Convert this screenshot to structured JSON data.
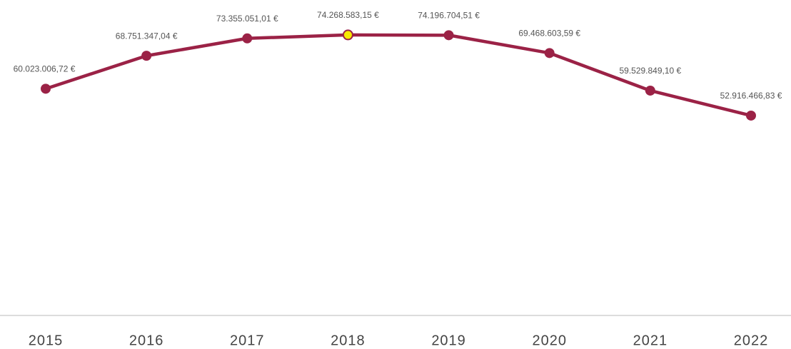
{
  "chart_data": {
    "type": "line",
    "categories": [
      "2015",
      "2016",
      "2017",
      "2018",
      "2019",
      "2020",
      "2021",
      "2022"
    ],
    "values": [
      60023006.72,
      68751347.04,
      73355051.01,
      74268583.15,
      74196704.51,
      69468603.59,
      59529849.1,
      52916466.83
    ],
    "value_labels": [
      "60.023.006,72 €",
      "68.751.347,04 €",
      "73.355.051,01 €",
      "74.268.583,15 €",
      "74.196.704,51 €",
      "69.468.603,59 €",
      "59.529.849,10 €",
      "52.916.466,83 €"
    ],
    "color": "#9b2246",
    "highlight": {
      "index": 3,
      "color": "#f7ea00"
    },
    "ylim": [
      0,
      80000000
    ]
  }
}
